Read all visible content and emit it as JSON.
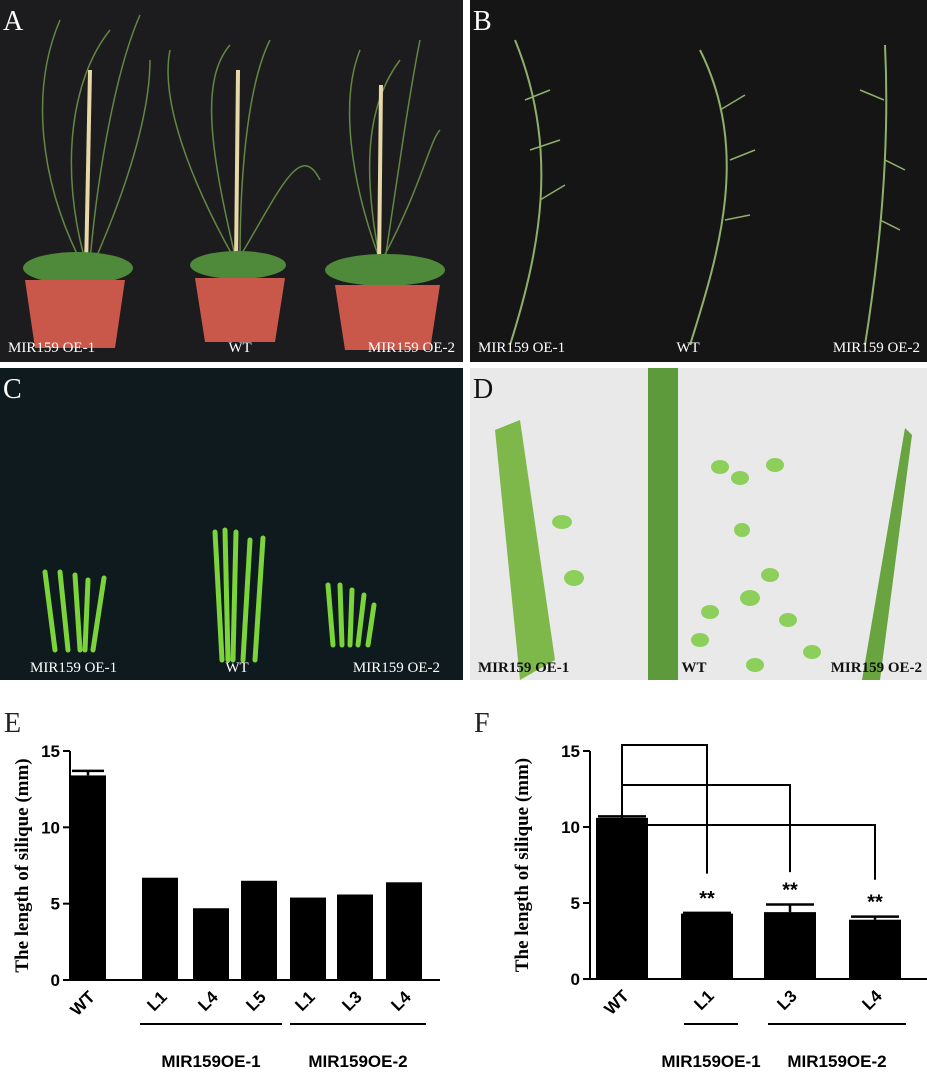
{
  "panels": [
    {
      "label": "A",
      "captions": [
        "MIR159 OE-1",
        "WT",
        "MIR159 OE-2"
      ]
    },
    {
      "label": "B",
      "captions": [
        "MIR159 OE-1",
        "WT",
        "MIR159 OE-2"
      ]
    },
    {
      "label": "C",
      "captions": [
        "MIR159 OE-1",
        "WT",
        "MIR159 OE-2"
      ]
    },
    {
      "label": "D",
      "captions": [
        "MIR159 OE-1",
        "WT",
        "MIR159 OE-2"
      ]
    }
  ],
  "chart_data": [
    {
      "type": "bar",
      "panel_label": "E",
      "y_label": "The length of silique (mm)",
      "categories": [
        "WT",
        "L1",
        "L4",
        "L5",
        "L1",
        "L3",
        "L4"
      ],
      "values": [
        13.4,
        6.7,
        4.7,
        6.5,
        5.4,
        5.6,
        6.4
      ],
      "errors": [
        0.3,
        null,
        null,
        null,
        null,
        null,
        null
      ],
      "group_labels": [
        "MIR159OE-1",
        "MIR159OE-2"
      ],
      "color": "#000000",
      "ylim": [
        0,
        15
      ],
      "yticks": [
        0,
        5,
        10,
        15
      ]
    },
    {
      "type": "bar",
      "panel_label": "F",
      "y_label": "The length of silique (mm)",
      "categories": [
        "WT",
        "L1",
        "L3",
        "L4"
      ],
      "values": [
        10.6,
        4.3,
        4.4,
        3.9
      ],
      "errors": [
        0.1,
        0.05,
        0.5,
        0.2
      ],
      "annotations": [
        null,
        "**",
        "**",
        "**"
      ],
      "group_labels": [
        "MIR159OE-1",
        "MIR159OE-2"
      ],
      "color": "#000000",
      "ylim": [
        0,
        15
      ],
      "yticks": [
        0,
        5,
        10,
        15
      ]
    }
  ]
}
